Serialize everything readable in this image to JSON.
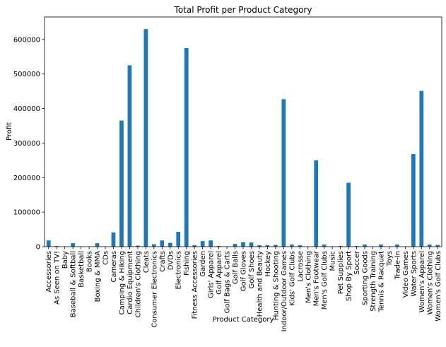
{
  "chart_data": {
    "type": "bar",
    "title": "Total Profit per Product Category",
    "xlabel": "Product Category",
    "ylabel": "Profit",
    "ylim": [
      0,
      665000
    ],
    "yticks": [
      0,
      100000,
      200000,
      300000,
      400000,
      500000,
      600000
    ],
    "ytick_labels": [
      "0",
      "100000",
      "200000",
      "300000",
      "400000",
      "500000",
      "600000"
    ],
    "grid": false,
    "legend": false,
    "bar_color": "#1f77b4",
    "categories": [
      "Accessories",
      "As Seen on  TV!",
      "Baby",
      "Baseball & Softball",
      "Basketball",
      "Books",
      "Boxing & MMA",
      "CDs",
      "Cameras",
      "Camping & Hiking",
      "Cardio Equipment",
      "Children's Clothing",
      "Cleats",
      "Consumer Electronics",
      "Crafts",
      "DVDs",
      "Electronics",
      "Fishing",
      "Fitness Accessories",
      "Garden",
      "Girls' Apparel",
      "Golf Apparel",
      "Golf Bags & Carts",
      "Golf Balls",
      "Golf Gloves",
      "Golf Shoes",
      "Health and Beauty",
      "Hockey",
      "Hunting & Shooting",
      "Indoor/Outdoor Games",
      "Kids' Golf Clubs",
      "Lacrosse",
      "Men's Clothing",
      "Men's Footwear",
      "Men's Golf Clubs",
      "Music",
      "Pet Supplies",
      "Shop By Sport",
      "Soccer",
      "Sporting Goods",
      "Strength Training",
      "Tennis & Racquet",
      "Toys",
      "Trade-In",
      "Video Games",
      "Water Sports",
      "Women's Apparel",
      "Women's Clothing",
      "Women's Golf Clubs"
    ],
    "values": [
      18000,
      2000,
      500,
      10000,
      500,
      500,
      10000,
      500,
      41000,
      365000,
      525000,
      3000,
      630000,
      7000,
      18000,
      11000,
      43000,
      575000,
      4000,
      16000,
      18000,
      2000,
      1000,
      8000,
      13000,
      12000,
      4000,
      4000,
      5000,
      427000,
      6000,
      4000,
      500,
      250000,
      6000,
      1000,
      2000,
      185000,
      2000,
      6000,
      500,
      6000,
      500,
      6000,
      500,
      268000,
      451000,
      6000,
      5000
    ]
  }
}
